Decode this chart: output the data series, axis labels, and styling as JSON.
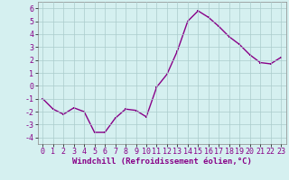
{
  "x": [
    0,
    1,
    2,
    3,
    4,
    5,
    6,
    7,
    8,
    9,
    10,
    11,
    12,
    13,
    14,
    15,
    16,
    17,
    18,
    19,
    20,
    21,
    22,
    23
  ],
  "y": [
    -1.0,
    -1.8,
    -2.2,
    -1.7,
    -2.0,
    -3.6,
    -3.6,
    -2.5,
    -1.8,
    -1.9,
    -2.4,
    -0.1,
    0.9,
    2.7,
    5.0,
    5.8,
    5.3,
    4.6,
    3.8,
    3.2,
    2.4,
    1.8,
    1.7,
    2.2
  ],
  "line_color": "#880088",
  "marker": "s",
  "marker_size": 2.0,
  "line_width": 1.0,
  "bg_color": "#d5f0f0",
  "grid_color": "#aacccc",
  "xlabel": "Windchill (Refroidissement éolien,°C)",
  "xlabel_fontsize": 6.5,
  "tick_fontsize": 6.0,
  "ylim": [
    -4.5,
    6.5
  ],
  "yticks": [
    -4,
    -3,
    -2,
    -1,
    0,
    1,
    2,
    3,
    4,
    5,
    6
  ],
  "xticks": [
    0,
    1,
    2,
    3,
    4,
    5,
    6,
    7,
    8,
    9,
    10,
    11,
    12,
    13,
    14,
    15,
    16,
    17,
    18,
    19,
    20,
    21,
    22,
    23
  ]
}
